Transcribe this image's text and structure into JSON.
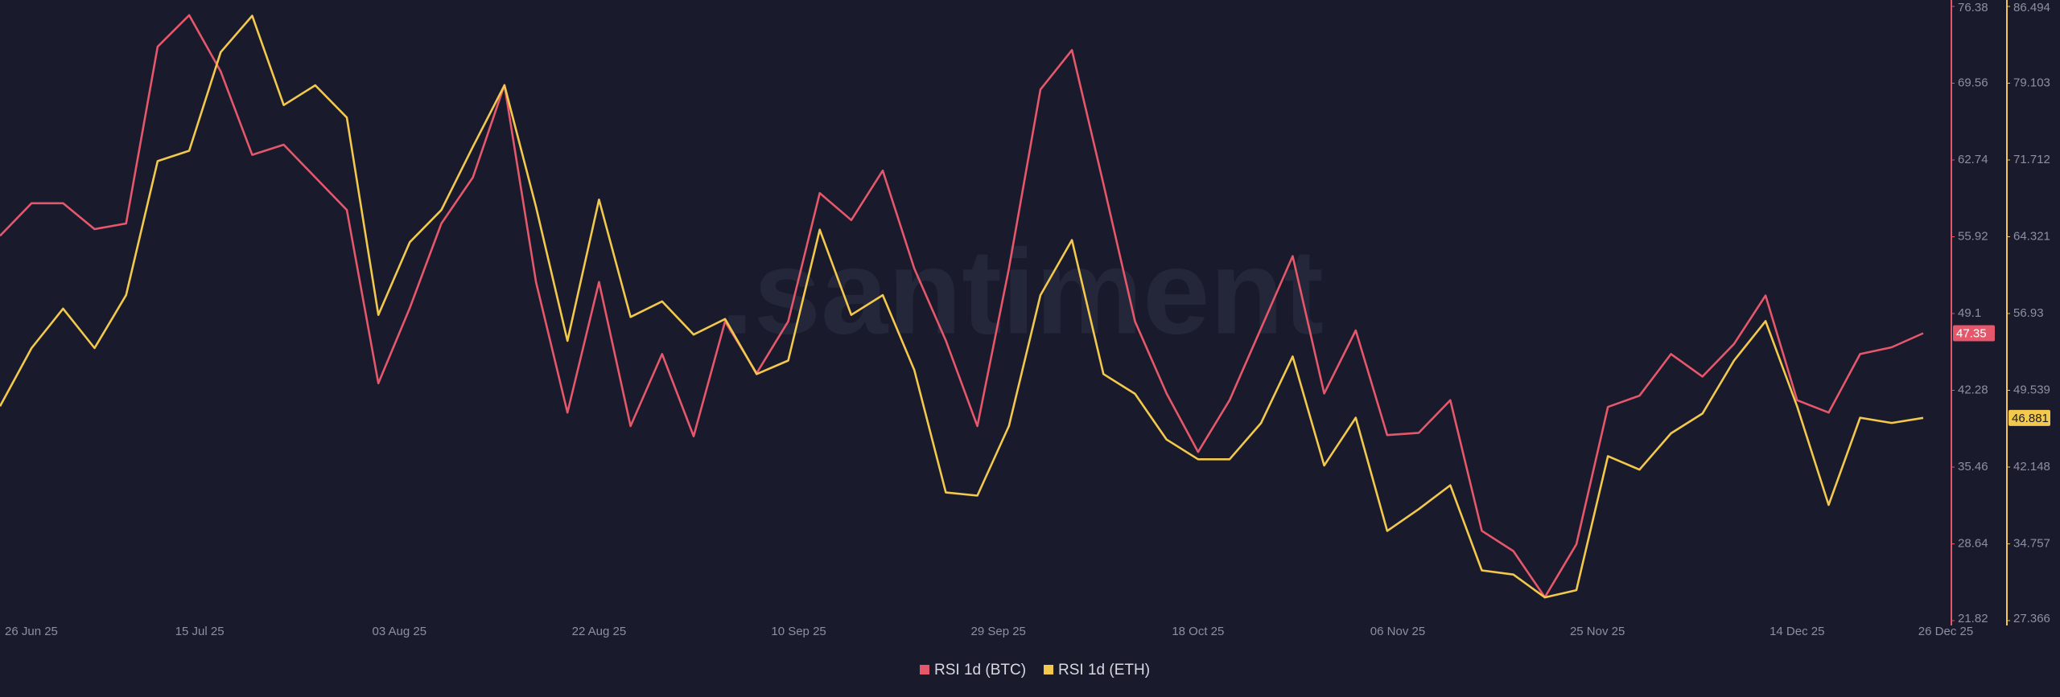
{
  "chart_data": {
    "type": "line",
    "watermark": ".santiment",
    "x": [
      "26 Jun 25",
      "29 Jun 25",
      "02 Jul 25",
      "05 Jul 25",
      "08 Jul 25",
      "11 Jul 25",
      "14 Jul 25",
      "17 Jul 25",
      "20 Jul 25",
      "23 Jul 25",
      "26 Jul 25",
      "29 Jul 25",
      "01 Aug 25",
      "04 Aug 25",
      "07 Aug 25",
      "10 Aug 25",
      "13 Aug 25",
      "16 Aug 25",
      "19 Aug 25",
      "22 Aug 25",
      "25 Aug 25",
      "28 Aug 25",
      "31 Aug 25",
      "03 Sep 25",
      "06 Sep 25",
      "09 Sep 25",
      "12 Sep 25",
      "15 Sep 25",
      "18 Sep 25",
      "21 Sep 25",
      "24 Sep 25",
      "27 Sep 25",
      "30 Sep 25",
      "03 Oct 25",
      "06 Oct 25",
      "09 Oct 25",
      "12 Oct 25",
      "15 Oct 25",
      "18 Oct 25",
      "21 Oct 25",
      "24 Oct 25",
      "27 Oct 25",
      "30 Oct 25",
      "02 Nov 25",
      "05 Nov 25",
      "08 Nov 25",
      "11 Nov 25",
      "14 Nov 25",
      "17 Nov 25",
      "20 Nov 25",
      "23 Nov 25",
      "26 Nov 25",
      "29 Nov 25",
      "02 Dec 25",
      "05 Dec 25",
      "08 Dec 25",
      "11 Dec 25",
      "14 Dec 25",
      "17 Dec 25",
      "20 Dec 25",
      "23 Dec 25",
      "26 Dec 25"
    ],
    "series": [
      {
        "name": "RSI 1d (BTC)",
        "color": "#e5576a",
        "axis": "y",
        "values": [
          56.0,
          58.9,
          58.9,
          56.6,
          57.1,
          72.8,
          75.6,
          70.6,
          63.2,
          64.1,
          61.2,
          58.3,
          42.9,
          49.6,
          57.1,
          61.2,
          69.4,
          51.9,
          40.3,
          51.9,
          39.1,
          45.5,
          38.2,
          48.4,
          43.8,
          48.4,
          59.8,
          57.4,
          61.8,
          53.1,
          46.7,
          39.1,
          53.1,
          69.0,
          72.5,
          60.6,
          48.4,
          42.0,
          36.8,
          41.4,
          47.8,
          54.2,
          42.0,
          47.6,
          38.3,
          38.5,
          41.4,
          29.8,
          28.0,
          23.9,
          28.6,
          40.8,
          41.8,
          45.5,
          43.5,
          46.4,
          50.7,
          41.4,
          40.3,
          45.5,
          46.1,
          47.35
        ]
      },
      {
        "name": "RSI 1d (ETH)",
        "color": "#f2c94c",
        "axis": "y2",
        "values": [
          48.0,
          53.6,
          57.4,
          53.6,
          58.7,
          71.6,
          72.6,
          82.1,
          85.6,
          77.0,
          78.9,
          75.8,
          56.8,
          63.8,
          66.9,
          73.0,
          78.9,
          67.2,
          54.3,
          67.9,
          56.6,
          58.1,
          54.9,
          56.4,
          51.1,
          52.4,
          65.0,
          56.8,
          58.7,
          51.5,
          39.7,
          39.4,
          46.1,
          58.7,
          64.0,
          51.1,
          49.2,
          44.8,
          42.9,
          42.9,
          46.4,
          52.8,
          42.3,
          46.9,
          36.0,
          38.1,
          40.4,
          32.2,
          31.8,
          29.6,
          30.3,
          43.2,
          41.9,
          45.4,
          47.3,
          52.4,
          56.2,
          48.0,
          38.5,
          46.9,
          46.4,
          46.881
        ]
      }
    ],
    "xticks": [
      "26 Jun 25",
      "15 Jul 25",
      "03 Aug 25",
      "22 Aug 25",
      "10 Sep 25",
      "29 Sep 25",
      "18 Oct 25",
      "06 Nov 25",
      "25 Nov 25",
      "14 Dec 25",
      "26 Dec 25"
    ],
    "ylim": [
      21.82,
      76.38
    ],
    "yticks": [
      76.38,
      69.56,
      62.74,
      55.92,
      49.1,
      42.28,
      35.46,
      28.64,
      21.82
    ],
    "y2lim": [
      27.366,
      86.494
    ],
    "y2ticks": [
      86.494,
      79.103,
      71.712,
      64.321,
      56.93,
      49.539,
      42.148,
      34.757,
      27.366
    ],
    "grid": false,
    "legend": "bottom"
  }
}
